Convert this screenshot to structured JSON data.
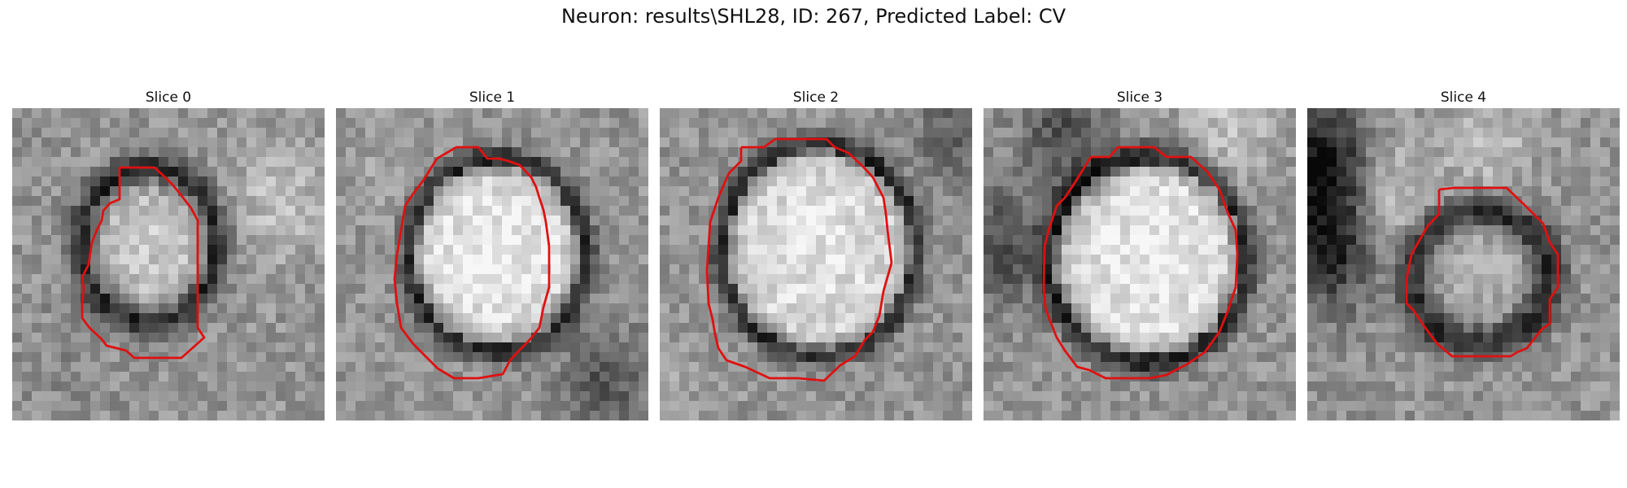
{
  "figure": {
    "title": "Neuron: results\\SHL28, ID: 267, Predicted Label: CV"
  },
  "slices": [
    {
      "title": "Slice 0",
      "contour_color": "#e01010"
    },
    {
      "title": "Slice 1",
      "contour_color": "#e01010"
    },
    {
      "title": "Slice 2",
      "contour_color": "#e01010"
    },
    {
      "title": "Slice 3",
      "contour_color": "#e01010"
    },
    {
      "title": "Slice 4",
      "contour_color": "#e01010"
    }
  ]
}
